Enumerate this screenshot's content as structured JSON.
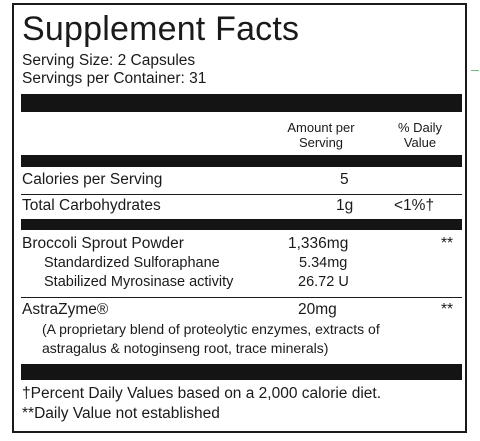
{
  "title": "Supplement Facts",
  "serving_size": "Serving Size: 2 Capsules",
  "servings_per_container": "Servings per Container: 31",
  "headers": {
    "amount": [
      "Amount per",
      "Serving"
    ],
    "daily_value": [
      "% Daily",
      "Value"
    ]
  },
  "rows": [
    {
      "name": "Calories per Serving",
      "amount": "5",
      "dv": ""
    },
    {
      "name": "Total Carbohydrates",
      "amount": "1g",
      "dv": "<1%†"
    },
    {
      "name": "Broccoli Sprout Powder",
      "amount": "1,336mg",
      "dv": "**"
    },
    {
      "name": "Standardized Sulforaphane",
      "amount": "5.34mg",
      "dv": ""
    },
    {
      "name": "Stabilized Myrosinase activity",
      "amount": "26.72 U",
      "dv": ""
    },
    {
      "name": "AstraZyme®",
      "amount": "20mg",
      "dv": "**"
    }
  ],
  "astrazyme_note": [
    "(A proprietary blend of proteolytic enzymes, extracts of",
    "astragalus & notoginseng root, trace minerals)"
  ],
  "footnotes": [
    "†Percent Daily Values based on a 2,000 calorie diet.",
    "**Daily Value not established"
  ],
  "colors": {
    "ink": "#1a1a1a",
    "bar": "#141414",
    "edge_mark": "#6fb98a"
  }
}
